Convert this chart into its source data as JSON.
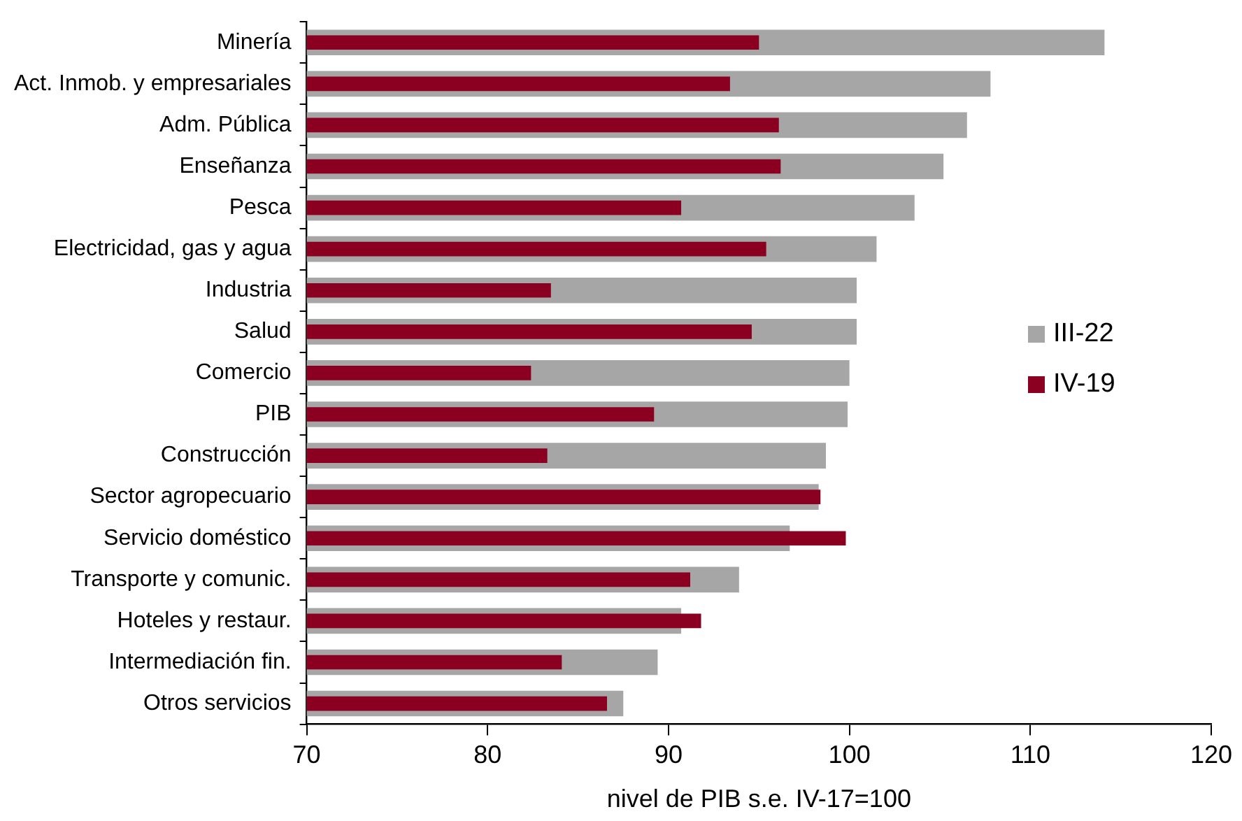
{
  "chart_data": {
    "type": "bar",
    "orientation": "horizontal",
    "xlabel": "nivel de PIB s.e. IV-17=100",
    "categories": [
      "Minería",
      "Act. Inmob. y empresariales",
      "Adm. Pública",
      "Enseñanza",
      "Pesca",
      "Electricidad, gas y agua",
      "Industria",
      "Salud",
      "Comercio",
      "PIB",
      "Construcción",
      "Sector agropecuario",
      "Servicio doméstico",
      "Transporte y comunic.",
      "Hoteles y restaur.",
      "Intermediación fin.",
      "Otros servicios"
    ],
    "series": [
      {
        "name": "III-22",
        "color": "#a6a6a6",
        "values": [
          114.1,
          107.8,
          106.5,
          105.2,
          103.6,
          101.5,
          100.4,
          100.4,
          100.0,
          99.9,
          98.7,
          98.3,
          96.7,
          93.9,
          90.7,
          89.4,
          87.5
        ]
      },
      {
        "name": "IV-19",
        "color": "#8b0020",
        "values": [
          95.0,
          93.4,
          96.1,
          96.2,
          90.7,
          95.4,
          83.5,
          94.6,
          82.4,
          89.2,
          83.3,
          98.4,
          99.8,
          91.2,
          91.8,
          84.1,
          86.6
        ]
      }
    ],
    "xlim": [
      70,
      120
    ],
    "xticks": [
      70,
      80,
      90,
      100,
      110,
      120
    ],
    "grid": false,
    "legend": "right"
  }
}
